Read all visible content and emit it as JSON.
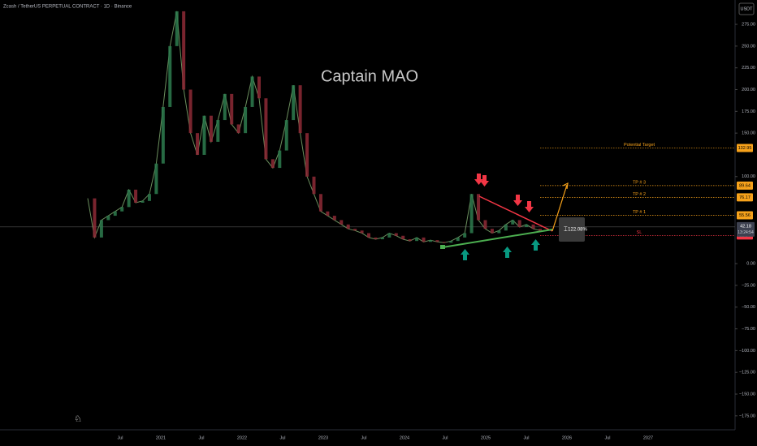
{
  "header": {
    "title": "Zcash / TetherUS PERPETUAL CONTRACT · 1D · Binance",
    "currency": "USDT"
  },
  "watermark": "Captain MAO",
  "price_axis": {
    "ylim": [
      -191,
      303
    ],
    "ticks": [
      {
        "value": 275,
        "label": "275.00"
      },
      {
        "value": 250,
        "label": "250.00"
      },
      {
        "value": 225,
        "label": "225.00"
      },
      {
        "value": 200,
        "label": "200.00"
      },
      {
        "value": 175,
        "label": "175.00"
      },
      {
        "value": 150,
        "label": "150.00"
      },
      {
        "value": 100,
        "label": "100.00"
      },
      {
        "value": 0,
        "label": "0.00"
      },
      {
        "value": -25,
        "label": "−25.00"
      },
      {
        "value": -50,
        "label": "−50.00"
      },
      {
        "value": -75,
        "label": "−75.00"
      },
      {
        "value": -100,
        "label": "−100.00"
      },
      {
        "value": -125,
        "label": "−125.00"
      },
      {
        "value": -150,
        "label": "−150.00"
      },
      {
        "value": -175,
        "label": "−175.00"
      }
    ]
  },
  "time_axis": {
    "labels": [
      "Jul",
      "2021",
      "Jul",
      "2022",
      "Jul",
      "2023",
      "Jul",
      "2024",
      "Jul",
      "2025",
      "Jul",
      "2026",
      "Jul",
      "2027"
    ]
  },
  "price_series": {
    "values": [
      75,
      30,
      50,
      55,
      60,
      65,
      85,
      70,
      72,
      80,
      115,
      180,
      250,
      290,
      200,
      150,
      125,
      170,
      140,
      165,
      195,
      160,
      150,
      180,
      215,
      190,
      120,
      110,
      130,
      165,
      205,
      150,
      100,
      80,
      60,
      55,
      50,
      45,
      40,
      38,
      35,
      30,
      28,
      30,
      35,
      32,
      28,
      26,
      30,
      25,
      27,
      25,
      24,
      26,
      30,
      35,
      80,
      50,
      40,
      35,
      38,
      45,
      50,
      42,
      45,
      40,
      38
    ]
  },
  "levels": [
    {
      "name": "Potential Target",
      "value": 132.95,
      "color": "#f7a21b"
    },
    {
      "name": "TP # 3",
      "value": 89.64,
      "color": "#f7a21b"
    },
    {
      "name": "TP # 2",
      "value": 76.17,
      "color": "#f7a21b"
    },
    {
      "name": "TP # 1",
      "value": 55.56,
      "color": "#f7a21b"
    },
    {
      "name": "SL",
      "value": 32.34,
      "color": "#f23645"
    }
  ],
  "last_price": {
    "value": 42.18,
    "countdown": "13:24:54"
  },
  "measure": "122.08%"
}
